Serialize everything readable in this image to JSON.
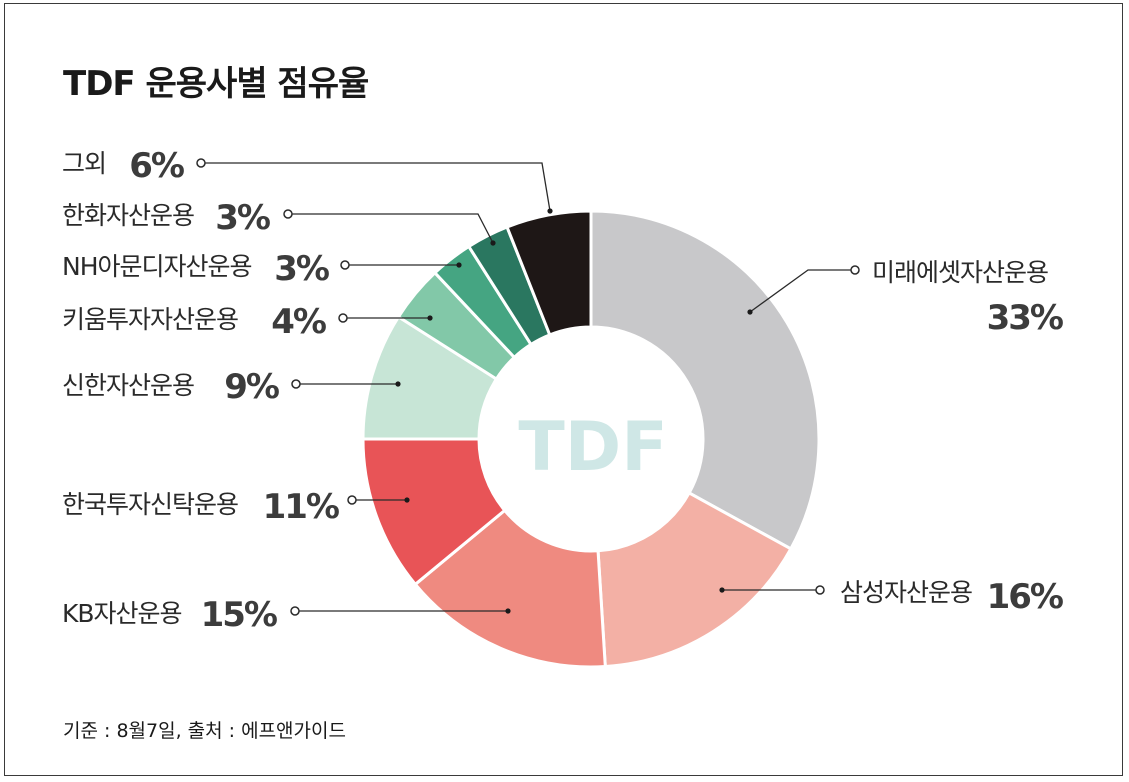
{
  "title": "TDF 운용사별 점유율",
  "footer": "기준 : 8월7일, 출처 : 에프앤가이드",
  "center_label": "TDF",
  "chart_data": {
    "type": "pie",
    "donut": true,
    "title": "TDF 운용사별 점유율",
    "slices": [
      {
        "label": "미래에셋자산운용",
        "value": 33,
        "pct": "33%",
        "color": "#c8c8ca"
      },
      {
        "label": "삼성자산운용",
        "value": 16,
        "pct": "16%",
        "color": "#f3b0a5"
      },
      {
        "label": "KB자산운용",
        "value": 15,
        "pct": "15%",
        "color": "#ef8a80"
      },
      {
        "label": "한국투자신탁운용",
        "value": 11,
        "pct": "11%",
        "color": "#e85457"
      },
      {
        "label": "신한자산운용",
        "value": 9,
        "pct": "9%",
        "color": "#c7e5d6"
      },
      {
        "label": "키움투자자산운용",
        "value": 4,
        "pct": "4%",
        "color": "#82c8a8"
      },
      {
        "label": "NH아문디자산운용",
        "value": 3,
        "pct": "3%",
        "color": "#45a582"
      },
      {
        "label": "한화자산운용",
        "value": 3,
        "pct": "3%",
        "color": "#2a7760"
      },
      {
        "label": "그외",
        "value": 6,
        "pct": "6%",
        "color": "#1e1716"
      }
    ]
  }
}
